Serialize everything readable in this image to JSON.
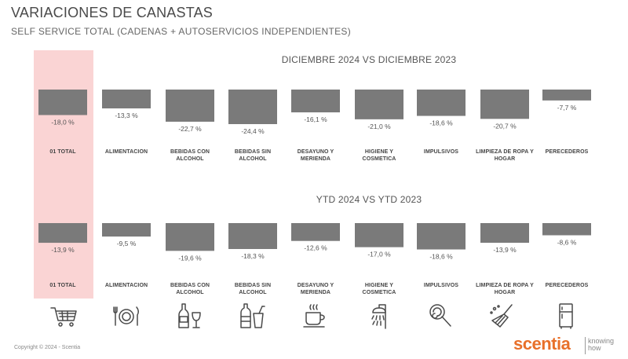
{
  "title": "VARIACIONES DE CANASTAS",
  "subtitle": "SELF SERVICE TOTAL (CADENAS + AUTOSERVICIOS INDEPENDIENTES)",
  "chart_data": [
    {
      "type": "bar",
      "title": "DICIEMBRE 2024 VS DICIEMBRE 2023",
      "categories": [
        "01 TOTAL",
        "ALIMENTACION",
        "BEBIDAS CON ALCOHOL",
        "BEBIDAS SIN ALCOHOL",
        "DESAYUNO Y MERIENDA",
        "HIGIENE Y COSMETICA",
        "IMPULSIVOS",
        "LIMPIEZA DE ROPA Y HOGAR",
        "PERECEDEROS"
      ],
      "values": [
        -18.0,
        -13.3,
        -22.7,
        -24.4,
        -16.1,
        -21.0,
        -18.6,
        -20.7,
        -7.7
      ],
      "value_labels": [
        "-18,0 %",
        "-13,3 %",
        "-22,7 %",
        "-24,4 %",
        "-16,1 %",
        "-21,0 %",
        "-18,6 %",
        "-20,7 %",
        "-7,7 %"
      ],
      "highlighted_category": "01 TOTAL",
      "bar_color": "#7a7a7a"
    },
    {
      "type": "bar",
      "title": "YTD 2024 VS YTD 2023",
      "categories": [
        "01 TOTAL",
        "ALIMENTACION",
        "BEBIDAS CON ALCOHOL",
        "BEBIDAS SIN ALCOHOL",
        "DESAYUNO Y MERIENDA",
        "HIGIENE Y COSMETICA",
        "IMPULSIVOS",
        "LIMPIEZA DE ROPA Y HOGAR",
        "PERECEDEROS"
      ],
      "values": [
        -13.9,
        -9.5,
        -19.6,
        -18.3,
        -12.6,
        -17.0,
        -18.6,
        -13.9,
        -8.6
      ],
      "value_labels": [
        "-13,9 %",
        "-9,5 %",
        "-19,6 %",
        "-18,3 %",
        "-12,6 %",
        "-17,0 %",
        "-18,6 %",
        "-13,9 %",
        "-8,6 %"
      ],
      "highlighted_category": "01 TOTAL",
      "bar_color": "#7a7a7a"
    }
  ],
  "category_labels": [
    [
      "01 TOTAL"
    ],
    [
      "ALIMENTACION"
    ],
    [
      "BEBIDAS CON",
      "ALCOHOL"
    ],
    [
      "BEBIDAS SIN",
      "ALCOHOL"
    ],
    [
      "DESAYUNO Y",
      "MERIENDA"
    ],
    [
      "HIGIENE Y",
      "COSMETICA"
    ],
    [
      "IMPULSIVOS"
    ],
    [
      "LIMPIEZA DE ROPA Y",
      "HOGAR"
    ],
    [
      "PERECEDEROS"
    ]
  ],
  "icons": [
    "shopping-cart-icon",
    "plate-cutlery-icon",
    "wine-bottle-glass-icon",
    "bottle-soda-icon",
    "coffee-cup-icon",
    "shower-icon",
    "lollipop-icon",
    "broom-icon",
    "refrigerator-icon"
  ],
  "highlight_color": "#fad4d4",
  "brand_color": "#e8702a",
  "footer": {
    "copyright": "Copyright © 2024 - Scentia",
    "logo": "scentia",
    "tagline": [
      "knowing",
      "how"
    ]
  }
}
